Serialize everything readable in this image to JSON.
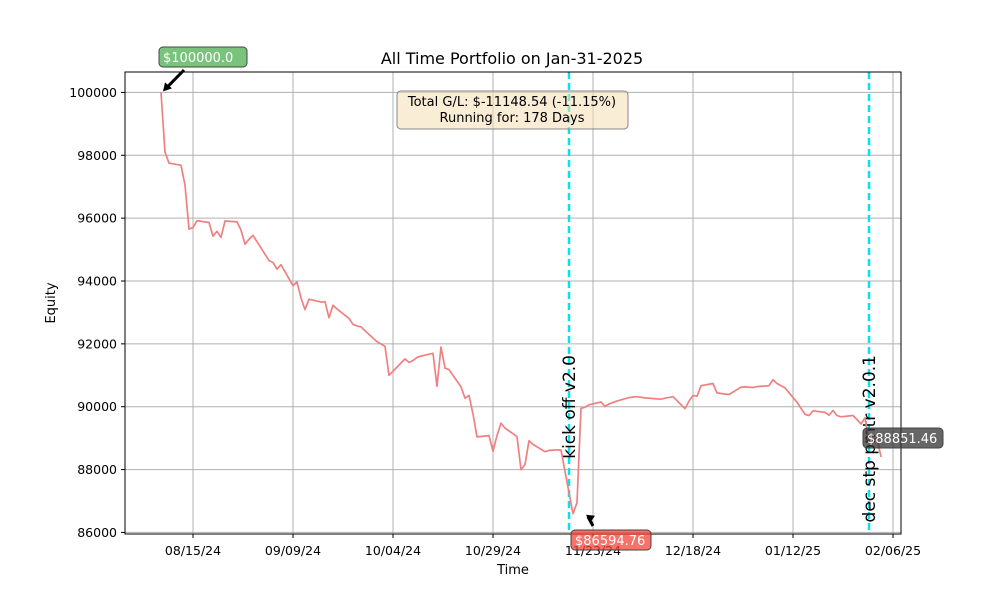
{
  "chart_data": {
    "type": "line",
    "title": "All Time Portfolio on Jan-31-2025",
    "xlabel": "Time",
    "ylabel": "Equity",
    "ylim": [
      85950,
      100650
    ],
    "xlim": [
      "2024-07-29",
      "2025-02-08"
    ],
    "grid": true,
    "x_ticks": [
      {
        "date": "2024-08-15",
        "label": "08/15/24"
      },
      {
        "date": "2024-09-09",
        "label": "09/09/24"
      },
      {
        "date": "2024-10-04",
        "label": "10/04/24"
      },
      {
        "date": "2024-10-29",
        "label": "10/29/24"
      },
      {
        "date": "2024-11-23",
        "label": "11/23/24"
      },
      {
        "date": "2024-12-18",
        "label": "12/18/24"
      },
      {
        "date": "2025-01-12",
        "label": "01/12/25"
      },
      {
        "date": "2025-02-06",
        "label": "02/06/25"
      }
    ],
    "y_ticks": [
      86000,
      88000,
      90000,
      92000,
      94000,
      96000,
      98000,
      100000
    ],
    "series": [
      {
        "color": "#f08080",
        "points": [
          [
            "2024-08-07",
            100000
          ],
          [
            "2024-08-08",
            98100
          ],
          [
            "2024-08-09",
            97750
          ],
          [
            "2024-08-12",
            97680
          ],
          [
            "2024-08-13",
            97050
          ],
          [
            "2024-08-14",
            95650
          ],
          [
            "2024-08-15",
            95700
          ],
          [
            "2024-08-16",
            95920
          ],
          [
            "2024-08-19",
            95860
          ],
          [
            "2024-08-20",
            95430
          ],
          [
            "2024-08-21",
            95580
          ],
          [
            "2024-08-22",
            95390
          ],
          [
            "2024-08-23",
            95910
          ],
          [
            "2024-08-26",
            95880
          ],
          [
            "2024-08-27",
            95620
          ],
          [
            "2024-08-28",
            95170
          ],
          [
            "2024-08-29",
            95330
          ],
          [
            "2024-08-30",
            95450
          ],
          [
            "2024-09-03",
            94650
          ],
          [
            "2024-09-04",
            94590
          ],
          [
            "2024-09-05",
            94380
          ],
          [
            "2024-09-06",
            94520
          ],
          [
            "2024-09-09",
            93850
          ],
          [
            "2024-09-10",
            93970
          ],
          [
            "2024-09-11",
            93460
          ],
          [
            "2024-09-12",
            93090
          ],
          [
            "2024-09-13",
            93420
          ],
          [
            "2024-09-16",
            93330
          ],
          [
            "2024-09-17",
            93340
          ],
          [
            "2024-09-18",
            92830
          ],
          [
            "2024-09-19",
            93230
          ],
          [
            "2024-09-20",
            93110
          ],
          [
            "2024-09-23",
            92810
          ],
          [
            "2024-09-24",
            92620
          ],
          [
            "2024-09-25",
            92570
          ],
          [
            "2024-09-26",
            92540
          ],
          [
            "2024-09-27",
            92420
          ],
          [
            "2024-09-30",
            92070
          ],
          [
            "2024-10-01",
            92000
          ],
          [
            "2024-10-02",
            91920
          ],
          [
            "2024-10-03",
            91000
          ],
          [
            "2024-10-07",
            91520
          ],
          [
            "2024-10-08",
            91410
          ],
          [
            "2024-10-09",
            91470
          ],
          [
            "2024-10-10",
            91570
          ],
          [
            "2024-10-11",
            91610
          ],
          [
            "2024-10-14",
            91700
          ],
          [
            "2024-10-15",
            90650
          ],
          [
            "2024-10-16",
            91900
          ],
          [
            "2024-10-17",
            91230
          ],
          [
            "2024-10-18",
            91180
          ],
          [
            "2024-10-21",
            90630
          ],
          [
            "2024-10-22",
            90270
          ],
          [
            "2024-10-23",
            90360
          ],
          [
            "2024-10-24",
            89770
          ],
          [
            "2024-10-25",
            89040
          ],
          [
            "2024-10-28",
            89080
          ],
          [
            "2024-10-29",
            88580
          ],
          [
            "2024-10-30",
            89080
          ],
          [
            "2024-10-31",
            89480
          ],
          [
            "2024-11-01",
            89320
          ],
          [
            "2024-11-04",
            89050
          ],
          [
            "2024-11-05",
            88000
          ],
          [
            "2024-11-06",
            88160
          ],
          [
            "2024-11-07",
            88920
          ],
          [
            "2024-11-08",
            88800
          ],
          [
            "2024-11-11",
            88570
          ],
          [
            "2024-11-12",
            88610
          ],
          [
            "2024-11-13",
            88620
          ],
          [
            "2024-11-14",
            88630
          ],
          [
            "2024-11-15",
            88620
          ],
          [
            "2024-11-18",
            86594.76
          ],
          [
            "2024-11-19",
            86950
          ],
          [
            "2024-11-20",
            89950
          ],
          [
            "2024-11-21",
            89980
          ],
          [
            "2024-11-22",
            90060
          ],
          [
            "2024-11-25",
            90150
          ],
          [
            "2024-11-26",
            90010
          ],
          [
            "2024-11-27",
            90090
          ],
          [
            "2024-11-29",
            90180
          ],
          [
            "2024-12-02",
            90290
          ],
          [
            "2024-12-03",
            90310
          ],
          [
            "2024-12-04",
            90320
          ],
          [
            "2024-12-06",
            90280
          ],
          [
            "2024-12-09",
            90250
          ],
          [
            "2024-12-10",
            90240
          ],
          [
            "2024-12-11",
            90270
          ],
          [
            "2024-12-13",
            90320
          ],
          [
            "2024-12-16",
            89940
          ],
          [
            "2024-12-17",
            90180
          ],
          [
            "2024-12-18",
            90360
          ],
          [
            "2024-12-19",
            90330
          ],
          [
            "2024-12-20",
            90670
          ],
          [
            "2024-12-23",
            90740
          ],
          [
            "2024-12-24",
            90440
          ],
          [
            "2024-12-26",
            90400
          ],
          [
            "2024-12-27",
            90390
          ],
          [
            "2024-12-30",
            90620
          ],
          [
            "2024-12-31",
            90630
          ],
          [
            "2025-01-02",
            90610
          ],
          [
            "2025-01-03",
            90640
          ],
          [
            "2025-01-06",
            90670
          ],
          [
            "2025-01-07",
            90860
          ],
          [
            "2025-01-08",
            90740
          ],
          [
            "2025-01-10",
            90600
          ],
          [
            "2025-01-13",
            90140
          ],
          [
            "2025-01-14",
            89950
          ],
          [
            "2025-01-15",
            89760
          ],
          [
            "2025-01-16",
            89720
          ],
          [
            "2025-01-17",
            89870
          ],
          [
            "2025-01-20",
            89820
          ],
          [
            "2025-01-21",
            89730
          ],
          [
            "2025-01-22",
            89880
          ],
          [
            "2025-01-23",
            89720
          ],
          [
            "2025-01-24",
            89680
          ],
          [
            "2025-01-27",
            89720
          ],
          [
            "2025-01-28",
            89590
          ],
          [
            "2025-01-29",
            89450
          ],
          [
            "2025-01-30",
            89650
          ],
          [
            "2025-01-31",
            88851.46
          ],
          [
            "2025-02-02",
            89000
          ],
          [
            "2025-02-03",
            88400
          ]
        ]
      }
    ],
    "vertical_lines": [
      {
        "date": "2024-11-17",
        "label": "kick off v2.0",
        "color": "#00e5ee"
      },
      {
        "date": "2025-01-31",
        "label": "dec stp pmtr v2.0.1",
        "color": "#00e5ee"
      }
    ],
    "annotations": [
      {
        "text": "$100000.0",
        "date": "2024-08-07",
        "value": 100000,
        "box_color": "#4caf50"
      },
      {
        "text": "$86594.76",
        "date": "2024-11-21",
        "value": 86594.76,
        "box_color": "#f44336"
      },
      {
        "text": "$88851.46",
        "date": "2025-02-03",
        "value": 88851.46,
        "box_color": "#333333"
      }
    ],
    "info_box": {
      "line1": "Total G/L: $-11148.54 (-11.15%)",
      "line2": "Running for: 178 Days",
      "color": "#f5deb3"
    }
  }
}
